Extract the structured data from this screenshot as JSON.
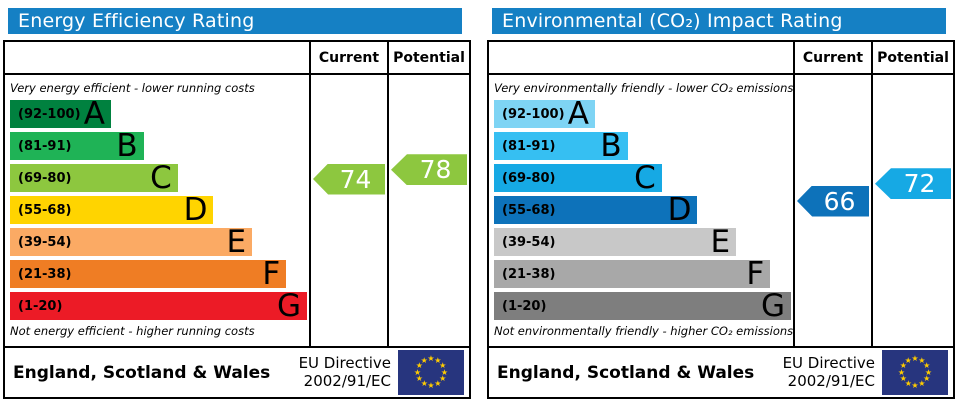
{
  "chart_data": [
    {
      "type": "bar",
      "title": "Energy Efficiency Rating",
      "title_bg": "#1580c4",
      "columns": [
        "Current",
        "Potential"
      ],
      "caption_top": "Very energy efficient - lower running costs",
      "caption_bottom": "Not energy efficient - higher running costs",
      "bands": [
        {
          "label": "A",
          "range": "(92-100)",
          "range_values": [
            92,
            100
          ],
          "color": "#00813f",
          "width_pct": 34
        },
        {
          "label": "B",
          "range": "(81-91)",
          "range_values": [
            81,
            91
          ],
          "color": "#1fb356",
          "width_pct": 45
        },
        {
          "label": "C",
          "range": "(69-80)",
          "range_values": [
            69,
            80
          ],
          "color": "#8dc73f",
          "width_pct": 56.5
        },
        {
          "label": "D",
          "range": "(55-68)",
          "range_values": [
            55,
            68
          ],
          "color": "#ffd400",
          "width_pct": 68.5
        },
        {
          "label": "E",
          "range": "(39-54)",
          "range_values": [
            39,
            54
          ],
          "color": "#fbaa64",
          "width_pct": 81.5
        },
        {
          "label": "F",
          "range": "(21-38)",
          "range_values": [
            21,
            38
          ],
          "color": "#ef7d24",
          "width_pct": 93
        },
        {
          "label": "G",
          "range": "(1-20)",
          "range_values": [
            1,
            20
          ],
          "color": "#ec1b26",
          "width_pct": 100
        }
      ],
      "current": {
        "value": 74,
        "band": "C",
        "color": "#8dc73f"
      },
      "potential": {
        "value": 78,
        "band": "C",
        "color": "#8dc73f"
      },
      "footer": {
        "region": "England, Scotland & Wales",
        "directive": [
          "EU Directive",
          "2002/91/EC"
        ],
        "flag": "eu-flag",
        "flag_bg": "#27357e",
        "flag_star_color": "#ffcc00"
      }
    },
    {
      "type": "bar",
      "title": "Environmental (CO₂) Impact Rating",
      "title_bg": "#1580c4",
      "columns": [
        "Current",
        "Potential"
      ],
      "caption_top": "Very environmentally friendly - lower CO₂ emissions",
      "caption_bottom": "Not environmentally friendly - higher CO₂ emissions",
      "bands": [
        {
          "label": "A",
          "range": "(92-100)",
          "range_values": [
            92,
            100
          ],
          "color": "#7ed4f4",
          "width_pct": 34
        },
        {
          "label": "B",
          "range": "(81-91)",
          "range_values": [
            81,
            91
          ],
          "color": "#36bff2",
          "width_pct": 45
        },
        {
          "label": "C",
          "range": "(69-80)",
          "range_values": [
            69,
            80
          ],
          "color": "#16a9e4",
          "width_pct": 56.5
        },
        {
          "label": "D",
          "range": "(55-68)",
          "range_values": [
            55,
            68
          ],
          "color": "#0d72ba",
          "width_pct": 68.5
        },
        {
          "label": "E",
          "range": "(39-54)",
          "range_values": [
            39,
            54
          ],
          "color": "#c8c8c8",
          "width_pct": 81.5
        },
        {
          "label": "F",
          "range": "(21-38)",
          "range_values": [
            21,
            38
          ],
          "color": "#a8a8a8",
          "width_pct": 93
        },
        {
          "label": "G",
          "range": "(1-20)",
          "range_values": [
            1,
            20
          ],
          "color": "#7e7e7e",
          "width_pct": 100
        }
      ],
      "current": {
        "value": 66,
        "band": "D",
        "color": "#0d72ba"
      },
      "potential": {
        "value": 72,
        "band": "C",
        "color": "#16a9e4"
      },
      "footer": {
        "region": "England, Scotland & Wales",
        "directive": [
          "EU Directive",
          "2002/91/EC"
        ],
        "flag": "eu-flag",
        "flag_bg": "#27357e",
        "flag_star_color": "#ffcc00"
      }
    }
  ]
}
